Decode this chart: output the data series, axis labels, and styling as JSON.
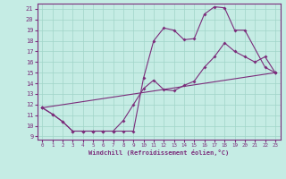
{
  "xlabel": "Windchill (Refroidissement éolien,°C)",
  "xlim": [
    -0.5,
    23.5
  ],
  "ylim": [
    8.7,
    21.5
  ],
  "yticks": [
    9,
    10,
    11,
    12,
    13,
    14,
    15,
    16,
    17,
    18,
    19,
    20,
    21
  ],
  "xticks": [
    0,
    1,
    2,
    3,
    4,
    5,
    6,
    7,
    8,
    9,
    10,
    11,
    12,
    13,
    14,
    15,
    16,
    17,
    18,
    19,
    20,
    21,
    22,
    23
  ],
  "line_color": "#7b2d7b",
  "bg_color": "#c5ece4",
  "grid_color": "#a0d4c8",
  "line1_x": [
    0,
    1,
    2,
    3,
    4,
    5,
    6,
    7,
    8,
    9,
    10,
    11,
    12,
    13,
    14,
    15,
    16,
    17,
    18,
    19,
    20,
    22,
    23
  ],
  "line1_y": [
    11.7,
    11.1,
    10.4,
    9.5,
    9.5,
    9.5,
    9.5,
    9.5,
    9.5,
    9.5,
    14.5,
    18.0,
    19.2,
    19.0,
    18.1,
    18.2,
    20.5,
    21.2,
    21.1,
    19.0,
    19.0,
    15.5,
    15.0
  ],
  "line2_x": [
    0,
    1,
    2,
    3,
    4,
    5,
    6,
    7,
    8,
    9,
    10,
    11,
    12,
    13,
    14,
    15,
    16,
    17,
    18,
    19,
    20,
    21,
    22,
    23
  ],
  "line2_y": [
    11.7,
    11.1,
    10.4,
    9.5,
    9.5,
    9.5,
    9.5,
    9.5,
    10.5,
    12.0,
    13.5,
    14.3,
    13.4,
    13.3,
    13.8,
    14.2,
    15.5,
    16.5,
    17.8,
    17.0,
    16.5,
    16.0,
    16.5,
    15.0
  ],
  "line3_x": [
    0,
    23
  ],
  "line3_y": [
    11.7,
    15.0
  ]
}
